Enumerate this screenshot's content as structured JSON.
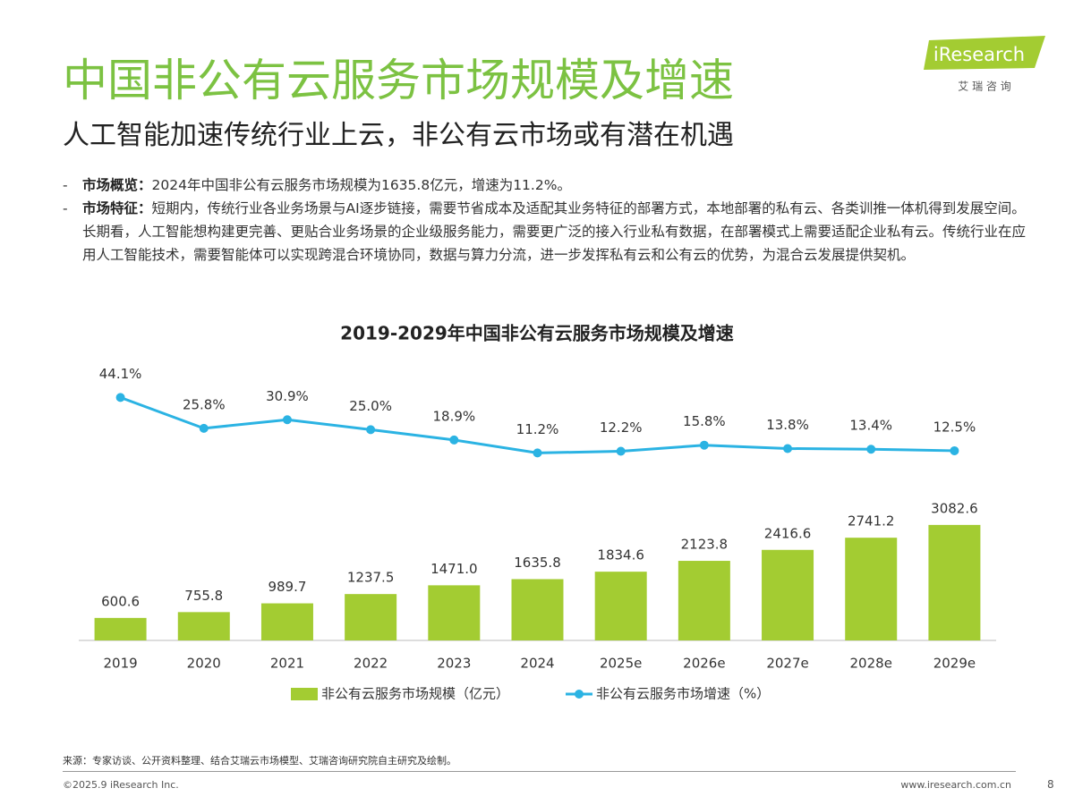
{
  "header": {
    "title": "中国非公有云服务市场规模及增速",
    "subtitle": "人工智能加速传统行业上云，非公有云市场或有潜在机遇"
  },
  "logo": {
    "brand": "iResearch",
    "tagline": "艾 瑞 咨 询"
  },
  "bullets": [
    {
      "label": "市场概览：",
      "text": "2024年中国非公有云服务市场规模为1635.8亿元，增速为11.2%。"
    },
    {
      "label": "市场特征：",
      "text": "短期内，传统行业各业务场景与AI逐步链接，需要节省成本及适配其业务特征的部署方式，本地部署的私有云、各类训推一体机得到发展空间。长期看，人工智能想构建更完善、更贴合业务场景的企业级服务能力，需要更广泛的接入行业私有数据，在部署模式上需要适配企业私有云。传统行业在应用人工智能技术，需要智能体可以实现跨混合环境协同，数据与算力分流，进一步发挥私有云和公有云的优势，为混合云发展提供契机。"
    }
  ],
  "chart_data": {
    "type": "bar-line",
    "title": "2019-2029年中国非公有云服务市场规模及增速",
    "categories": [
      "2019",
      "2020",
      "2021",
      "2022",
      "2023",
      "2024",
      "2025e",
      "2026e",
      "2027e",
      "2028e",
      "2029e"
    ],
    "series": [
      {
        "name": "非公有云服务市场规模（亿元）",
        "type": "bar",
        "color": "#a3cc32",
        "values": [
          600.6,
          755.8,
          989.7,
          1237.5,
          1471.0,
          1635.8,
          1834.6,
          2123.8,
          2416.6,
          2741.2,
          3082.6
        ],
        "value_labels": [
          "600.6",
          "755.8",
          "989.7",
          "1237.5",
          "1471.0",
          "1635.8",
          "1834.6",
          "2123.8",
          "2416.6",
          "2741.2",
          "3082.6"
        ]
      },
      {
        "name": "非公有云服务市场增速（%）",
        "type": "line",
        "axis": "y2",
        "color": "#2bb3e3",
        "values": [
          44.1,
          25.8,
          30.9,
          25.0,
          18.9,
          11.2,
          12.2,
          15.8,
          13.8,
          13.4,
          12.5
        ],
        "value_labels": [
          "44.1%",
          "25.8%",
          "30.9%",
          "25.0%",
          "18.9%",
          "11.2%",
          "12.2%",
          "15.8%",
          "13.8%",
          "13.4%",
          "12.5%"
        ]
      }
    ],
    "ylim": [
      0,
      9000
    ],
    "y2lim": [
      -100,
      100
    ],
    "legend": "bottom"
  },
  "footer": {
    "source": "来源：专家访谈、公开资料整理、结合艾瑞云市场模型、艾瑞咨询研究院自主研究及绘制。",
    "copyright": "©2025.9 iResearch Inc.",
    "url": "www.iresearch.com.cn",
    "page": 8
  }
}
